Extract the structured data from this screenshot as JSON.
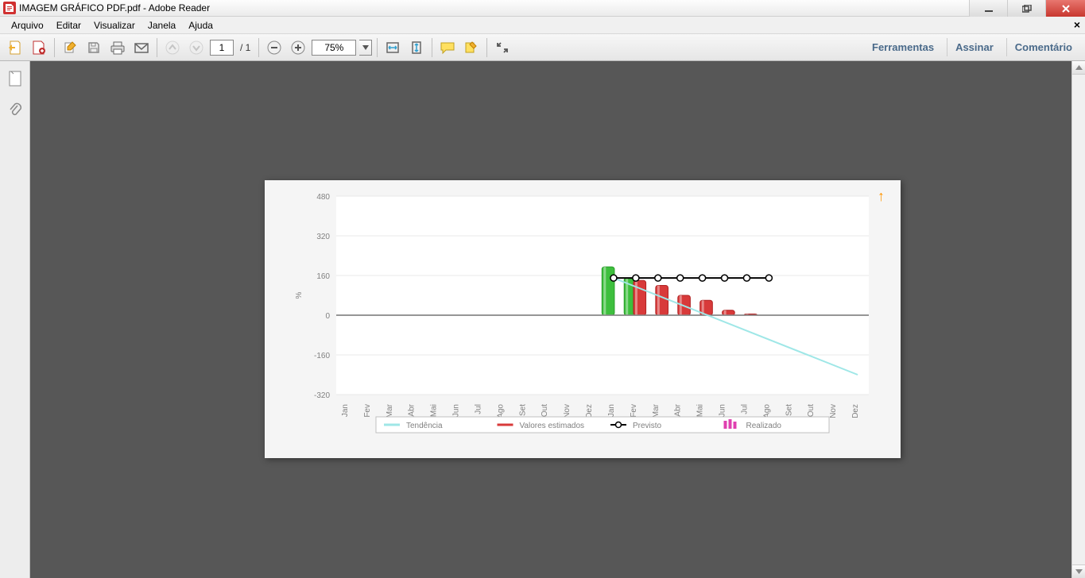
{
  "window": {
    "title": "IMAGEM GRÁFICO PDF.pdf - Adobe Reader"
  },
  "menu": {
    "items": [
      "Arquivo",
      "Editar",
      "Visualizar",
      "Janela",
      "Ajuda"
    ]
  },
  "toolbar": {
    "page_current": "1",
    "page_total": "/ 1",
    "zoom": "75%",
    "right_links": [
      "Ferramentas",
      "Assinar",
      "Comentário"
    ]
  },
  "chart": {
    "type": "bar+line",
    "ylabel": "%",
    "ylim": [
      -320,
      480
    ],
    "ytick_step": 160,
    "yticks": [
      480,
      320,
      160,
      0,
      -160,
      -320
    ],
    "categories": [
      "Jan",
      "Fev",
      "Mar",
      "Abr",
      "Mai",
      "Jun",
      "Jul",
      "Ago",
      "Set",
      "Out",
      "Nov",
      "Dez",
      "Jan",
      "Fev",
      "Mar",
      "Abr",
      "Mai",
      "Jun",
      "Jul",
      "Ago",
      "Set",
      "Out",
      "Nov",
      "Dez"
    ],
    "bars_green": {
      "color": "#3dbf3d",
      "color_dark": "#2a9c2a",
      "indices": [
        12,
        13
      ],
      "values": [
        195,
        150
      ]
    },
    "bars_red": {
      "color": "#d83a3a",
      "color_dark": "#b02222",
      "indices": [
        13,
        14,
        15,
        16,
        17,
        18
      ],
      "values": [
        140,
        120,
        80,
        60,
        20,
        5
      ]
    },
    "previsto_line": {
      "color": "#000000",
      "marker": "circle-open",
      "marker_fill": "#ffffff",
      "indices": [
        12,
        13,
        14,
        15,
        16,
        17,
        18,
        19
      ],
      "values": [
        150,
        150,
        150,
        150,
        150,
        150,
        150,
        150
      ]
    },
    "tendencia_line": {
      "color": "#9fe7e7",
      "width": 2,
      "points": [
        [
          12,
          150
        ],
        [
          23,
          -240
        ]
      ]
    },
    "background_color": "#ffffff",
    "grid_color": "#e8e8e8",
    "axis_color": "#888888",
    "label_fontsize": 10,
    "label_color": "#808080",
    "legend": {
      "border_color": "#c0c0c0",
      "background": "#ffffff",
      "items": [
        {
          "label": "Tendência",
          "type": "line",
          "color": "#9fe7e7"
        },
        {
          "label": "Valores estimados",
          "type": "line",
          "color": "#d83a3a"
        },
        {
          "label": "Previsto",
          "type": "line-marker",
          "color": "#000000"
        },
        {
          "label": "Realizado",
          "type": "bars",
          "color": "#e040b0"
        }
      ]
    }
  }
}
